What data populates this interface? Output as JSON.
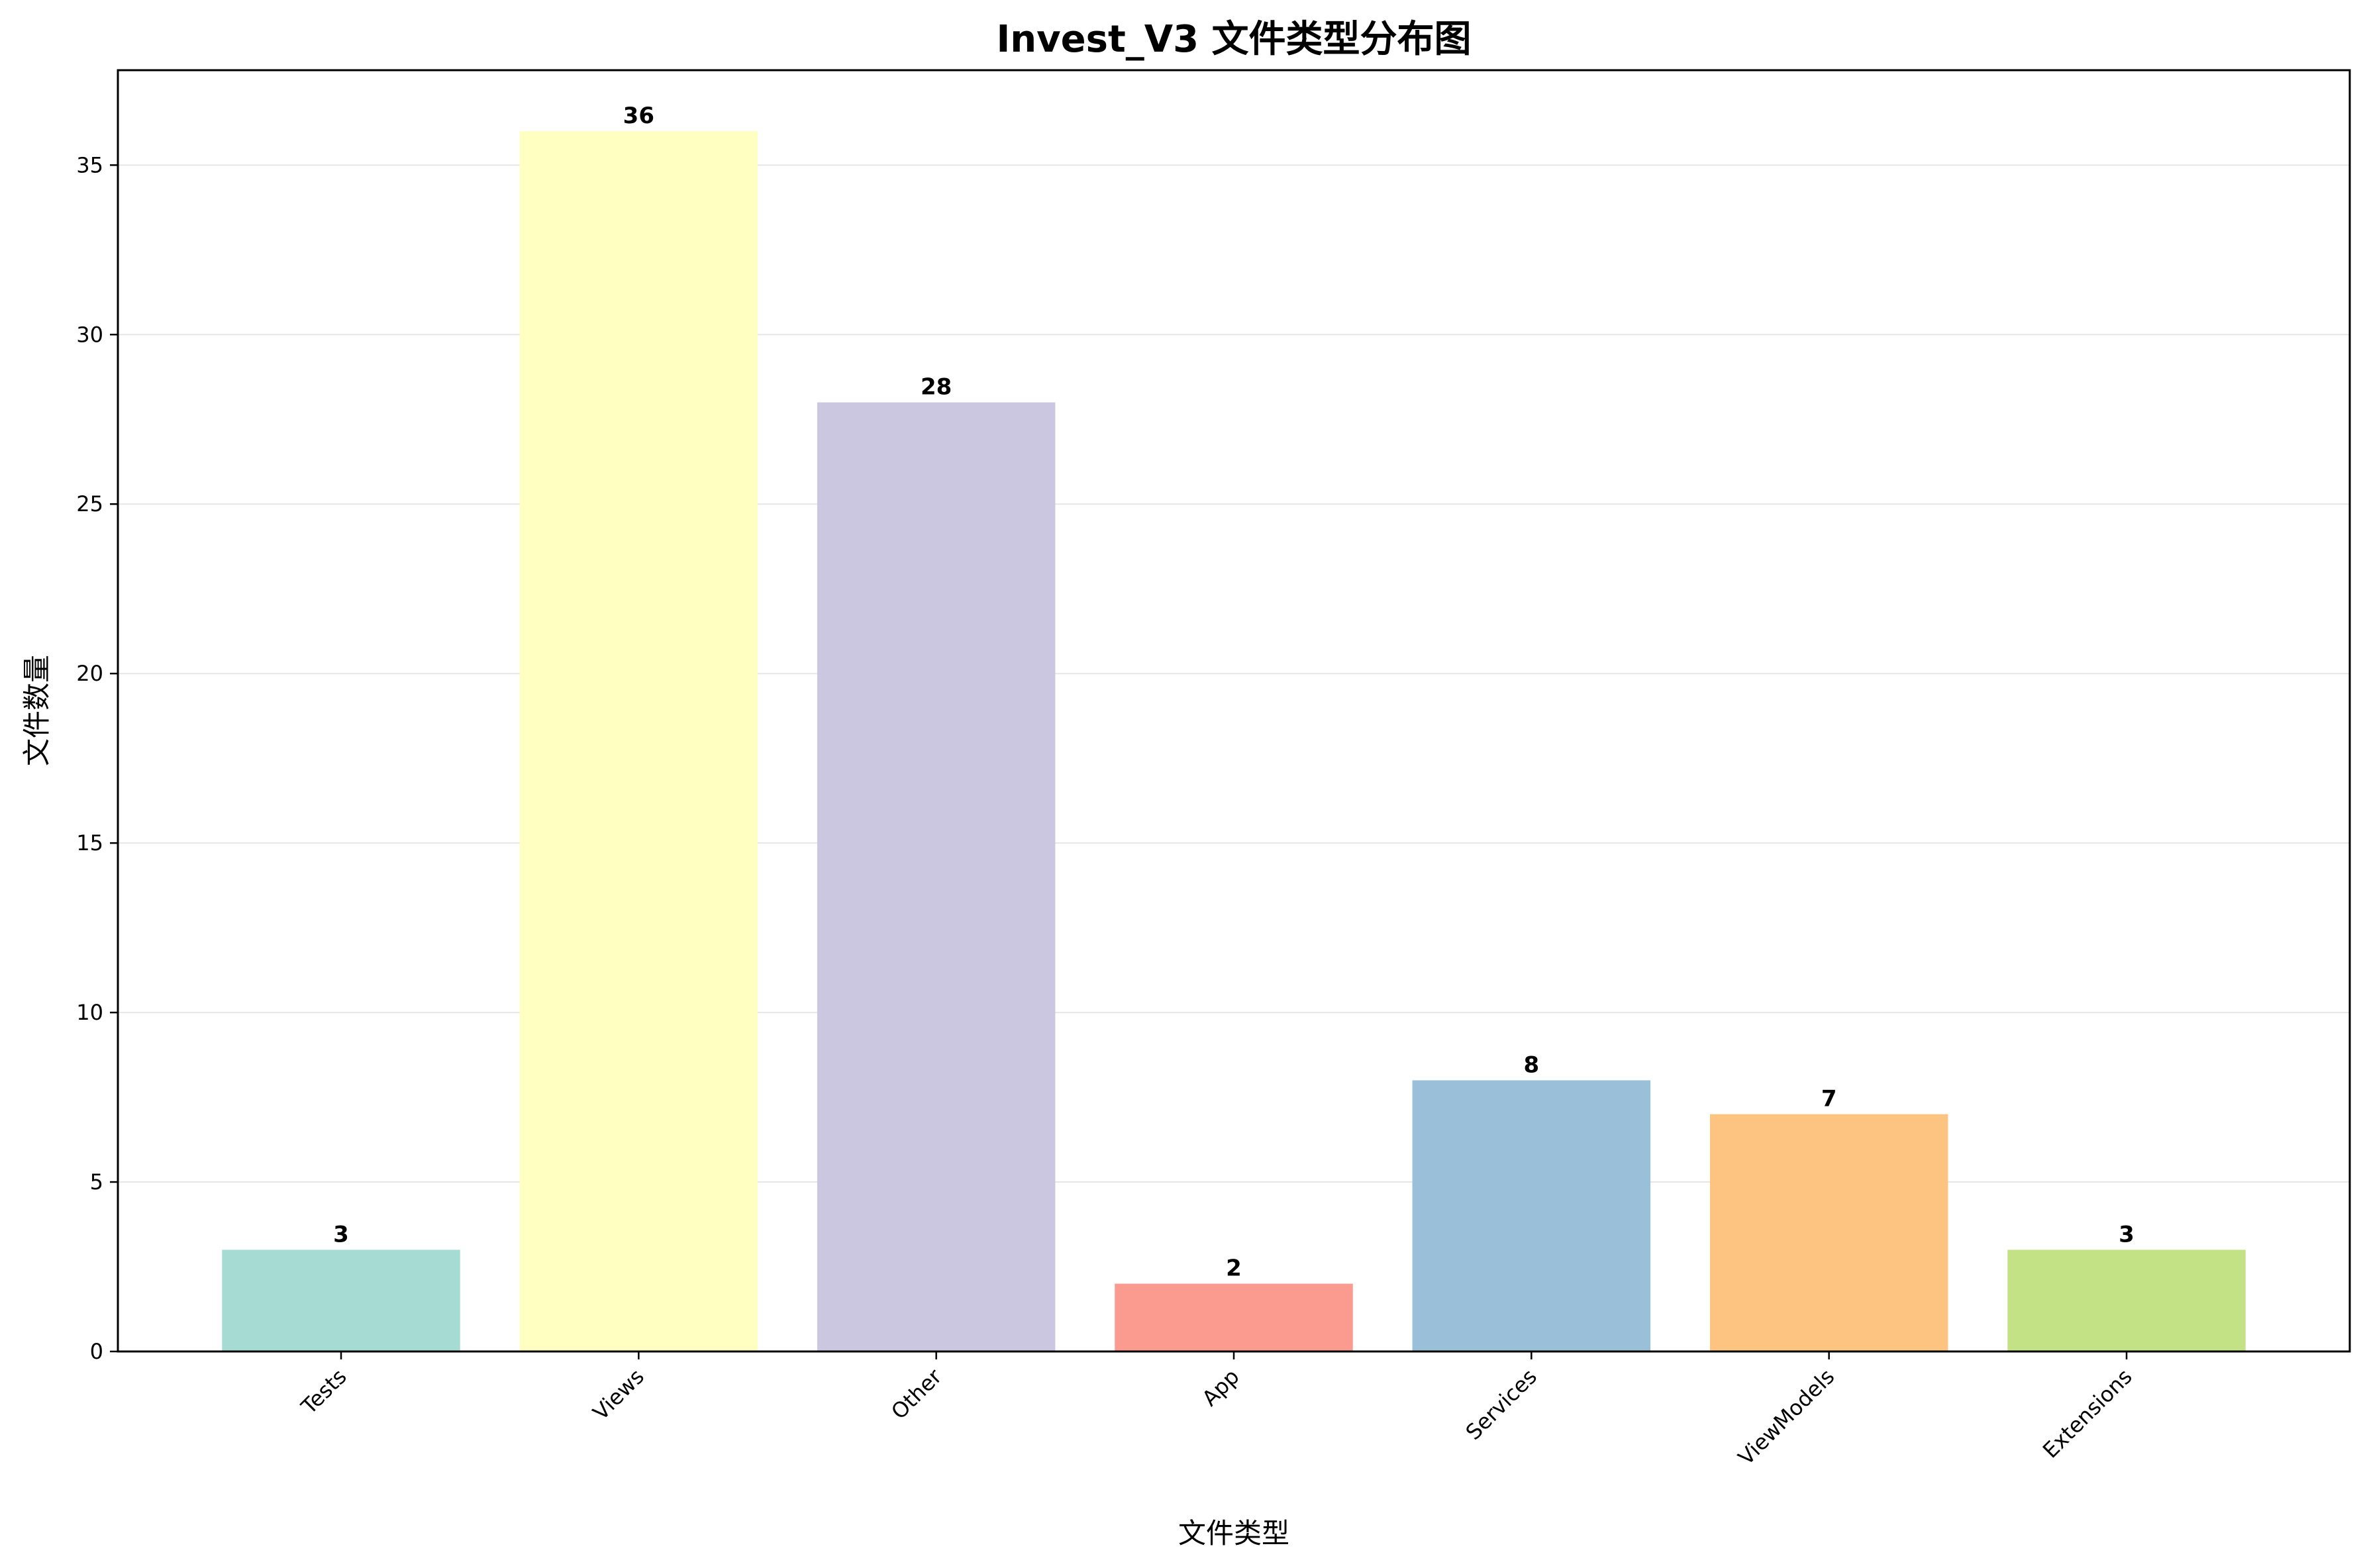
{
  "chart_data": {
    "type": "bar",
    "title": "Invest_V3 文件类型分布图",
    "xlabel": "文件类型",
    "ylabel": "文件数量",
    "categories": [
      "Tests",
      "Views",
      "Other",
      "App",
      "Services",
      "ViewModels",
      "Extensions"
    ],
    "values": [
      3,
      36,
      28,
      2,
      8,
      7,
      3
    ],
    "colors": [
      "#a6dbd4",
      "#ffffc2",
      "#cbc7e0",
      "#fb9a8f",
      "#99bfd9",
      "#fdc380",
      "#c3e286"
    ],
    "ylim": [
      0,
      37.8
    ],
    "yticks": [
      0,
      5,
      10,
      15,
      20,
      25,
      30,
      35
    ],
    "grid": "horizontal",
    "legend": "none"
  }
}
